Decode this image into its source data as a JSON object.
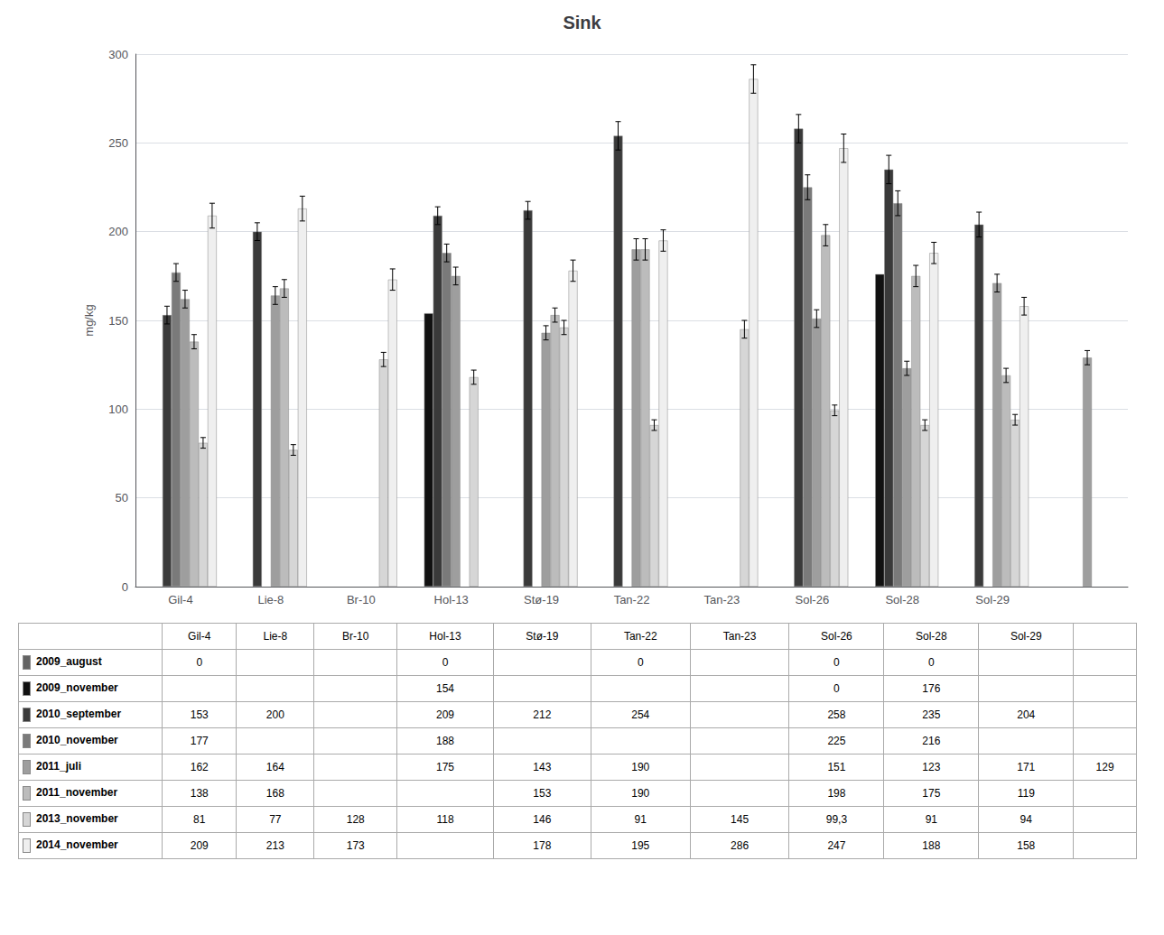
{
  "chart_data": {
    "type": "bar",
    "title": "Sink",
    "ylabel": "mg/kg",
    "categories": [
      "Gil-4",
      "Lie-8",
      "Br-10",
      "Hol-13",
      "Stø-19",
      "Tan-22",
      "Tan-23",
      "Sol-26",
      "Sol-28",
      "Sol-29",
      null
    ],
    "series": [
      {
        "name": "2009_august",
        "color": "#636363",
        "values": [
          0,
          null,
          null,
          0,
          null,
          0,
          null,
          0,
          0,
          null,
          null
        ],
        "errors": [
          null,
          null,
          null,
          null,
          null,
          null,
          null,
          null,
          null,
          null,
          null
        ],
        "value_labels": [
          "0",
          null,
          null,
          "0",
          null,
          "0",
          null,
          "0",
          "0",
          null,
          null
        ]
      },
      {
        "name": "2009_november",
        "color": "#111111",
        "values": [
          null,
          null,
          null,
          154,
          null,
          null,
          null,
          0,
          176,
          null,
          null
        ],
        "errors": [
          null,
          null,
          null,
          null,
          null,
          null,
          null,
          null,
          null,
          null,
          null
        ],
        "value_labels": [
          null,
          null,
          null,
          "154",
          null,
          null,
          null,
          "0",
          "176",
          null,
          null
        ]
      },
      {
        "name": "2010_september",
        "color": "#3a3a3a",
        "values": [
          153,
          200,
          null,
          209,
          212,
          254,
          null,
          258,
          235,
          204,
          null
        ],
        "errors": [
          5,
          5,
          null,
          5,
          5,
          8,
          null,
          8,
          8,
          7,
          null
        ],
        "value_labels": [
          "153",
          "200",
          null,
          "209",
          "212",
          "254",
          null,
          "258",
          "235",
          "204",
          null
        ]
      },
      {
        "name": "2010_november",
        "color": "#7a7a7a",
        "values": [
          177,
          null,
          null,
          188,
          null,
          null,
          null,
          225,
          216,
          null,
          null
        ],
        "errors": [
          5,
          null,
          null,
          5,
          null,
          null,
          null,
          7,
          7,
          null,
          null
        ],
        "value_labels": [
          "177",
          null,
          null,
          "188",
          null,
          null,
          null,
          "225",
          "216",
          null,
          null
        ]
      },
      {
        "name": "2011_juli",
        "color": "#9e9e9e",
        "values": [
          162,
          164,
          null,
          175,
          143,
          190,
          null,
          151,
          123,
          171,
          129
        ],
        "errors": [
          5,
          5,
          null,
          5,
          4,
          6,
          null,
          5,
          4,
          5,
          4
        ],
        "value_labels": [
          "162",
          "164",
          null,
          "175",
          "143",
          "190",
          null,
          "151",
          "123",
          "171",
          "129"
        ]
      },
      {
        "name": "2011_november",
        "color": "#bcbcbc",
        "values": [
          138,
          168,
          null,
          null,
          153,
          190,
          null,
          198,
          175,
          119,
          null
        ],
        "errors": [
          4,
          5,
          null,
          null,
          4,
          6,
          null,
          6,
          6,
          4,
          null
        ],
        "value_labels": [
          "138",
          "168",
          null,
          null,
          "153",
          "190",
          null,
          "198",
          "175",
          "119",
          null
        ]
      },
      {
        "name": "2013_november",
        "color": "#d6d6d6",
        "values": [
          81,
          77,
          128,
          118,
          146,
          91,
          145,
          99.3,
          91,
          94,
          null
        ],
        "errors": [
          3,
          3,
          4,
          4,
          4,
          3,
          5,
          3,
          3,
          3,
          null
        ],
        "value_labels": [
          "81",
          "77",
          "128",
          "118",
          "146",
          "91",
          "145",
          "99,3",
          "91",
          "94",
          null
        ]
      },
      {
        "name": "2014_november",
        "color": "#efefef",
        "values": [
          209,
          213,
          173,
          null,
          178,
          195,
          286,
          247,
          188,
          158,
          null
        ],
        "errors": [
          7,
          7,
          6,
          null,
          6,
          6,
          8,
          8,
          6,
          5,
          null
        ],
        "value_labels": [
          "209",
          "213",
          "173",
          null,
          "178",
          "195",
          "286",
          "247",
          "188",
          "158",
          null
        ]
      }
    ],
    "ylim": [
      0,
      300
    ],
    "yticks": [
      0,
      50,
      100,
      150,
      200,
      250,
      300
    ],
    "grid": true
  }
}
